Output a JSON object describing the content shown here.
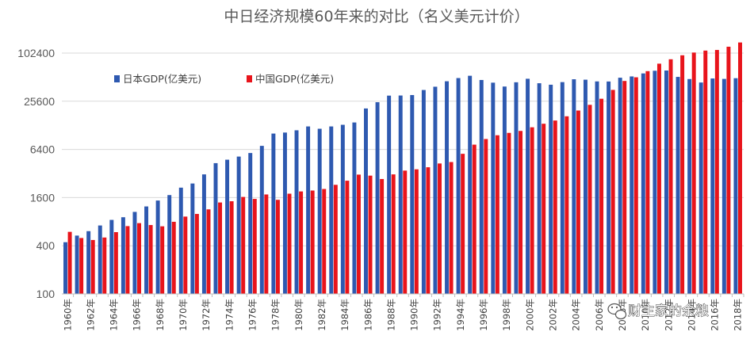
{
  "chart_data": {
    "type": "bar",
    "title": "中日经济规模60年来的对比（名义美元计价）",
    "xlabel": "",
    "ylabel": "",
    "yscale": "log2",
    "ylim": [
      100,
      153600
    ],
    "yticks": [
      100,
      400,
      1600,
      6400,
      25600,
      102400
    ],
    "grid": true,
    "legend_position": "top-left",
    "categories": [
      "1960年",
      "1961年",
      "1962年",
      "1963年",
      "1964年",
      "1965年",
      "1966年",
      "1967年",
      "1968年",
      "1969年",
      "1970年",
      "1971年",
      "1972年",
      "1973年",
      "1974年",
      "1975年",
      "1976年",
      "1977年",
      "1978年",
      "1979年",
      "1980年",
      "1981年",
      "1982年",
      "1983年",
      "1984年",
      "1985年",
      "1986年",
      "1987年",
      "1988年",
      "1989年",
      "1990年",
      "1991年",
      "1992年",
      "1993年",
      "1994年",
      "1995年",
      "1996年",
      "1997年",
      "1998年",
      "1999年",
      "2000年",
      "2001年",
      "2002年",
      "2003年",
      "2004年",
      "2005年",
      "2006年",
      "2007年",
      "2008年",
      "2009年",
      "2010年",
      "2011年",
      "2012年",
      "2013年",
      "2014年",
      "2015年",
      "2016年",
      "2017年",
      "2018年"
    ],
    "xtick_labels": [
      "1960年",
      "",
      "1962年",
      "",
      "1964年",
      "",
      "1966年",
      "",
      "1968年",
      "",
      "1970年",
      "",
      "1972年",
      "",
      "1974年",
      "",
      "1976年",
      "",
      "1978年",
      "",
      "1980年",
      "",
      "1982年",
      "",
      "1984年",
      "",
      "1986年",
      "",
      "1988年",
      "",
      "1990年",
      "",
      "1992年",
      "",
      "1994年",
      "",
      "1996年",
      "",
      "1998年",
      "",
      "2000年",
      "",
      "2002年",
      "",
      "2004年",
      "",
      "2006年",
      "",
      "2008年",
      "",
      "2010年",
      "",
      "2012年",
      "",
      "2014年",
      "",
      "2016年",
      "",
      "2018年"
    ],
    "series": [
      {
        "name": "日本GDP(亿美元)",
        "color": "#2e59b0",
        "values": [
          443,
          536,
          609,
          717,
          842,
          909,
          1060,
          1240,
          1470,
          1720,
          2130,
          2400,
          3120,
          4310,
          4760,
          5210,
          5770,
          7090,
          10100,
          10400,
          11100,
          12400,
          11600,
          12400,
          13000,
          13900,
          20800,
          24900,
          30100,
          30200,
          30600,
          35400,
          38900,
          45500,
          49900,
          53300,
          47200,
          43700,
          39100,
          44200,
          48900,
          43000,
          41200,
          44400,
          48200,
          47600,
          45300,
          45200,
          50400,
          52300,
          57000,
          61600,
          62000,
          51600,
          48500,
          43900,
          49300,
          48700,
          49700
        ]
      },
      {
        "name": "中国GDP(亿美元)",
        "color": "#e8141b",
        "values": [
          597,
          500,
          472,
          507,
          592,
          704,
          767,
          726,
          700,
          797,
          926,
          999,
          1140,
          1390,
          1440,
          1630,
          1540,
          1750,
          1500,
          1790,
          1910,
          1960,
          2050,
          2310,
          2600,
          3100,
          3010,
          2730,
          3120,
          3480,
          3610,
          3830,
          4270,
          4450,
          5640,
          7340,
          8630,
          9620,
          10300,
          10900,
          12100,
          13400,
          14700,
          16600,
          19600,
          23100,
          27500,
          35500,
          45900,
          51000,
          60900,
          75500,
          85700,
          96100,
          104000,
          110000,
          112000,
          123000,
          139000
        ]
      }
    ]
  },
  "watermark": {
    "icon": "wechat-icon",
    "text": "财主家的余粮"
  }
}
